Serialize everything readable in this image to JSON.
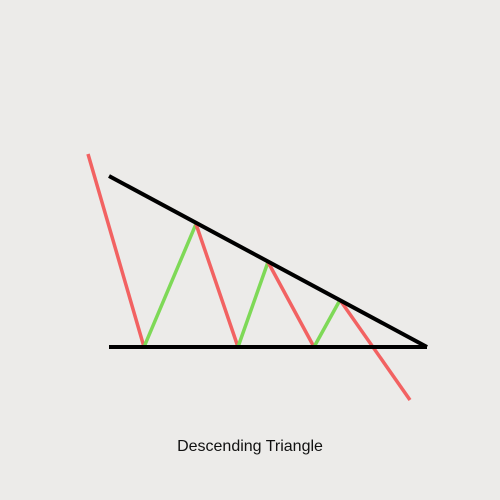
{
  "caption": "Descending Triangle",
  "colors": {
    "background": "#ecebe9",
    "trendline": "#000000",
    "down_move": "#f26262",
    "up_move": "#7ed957"
  }
}
